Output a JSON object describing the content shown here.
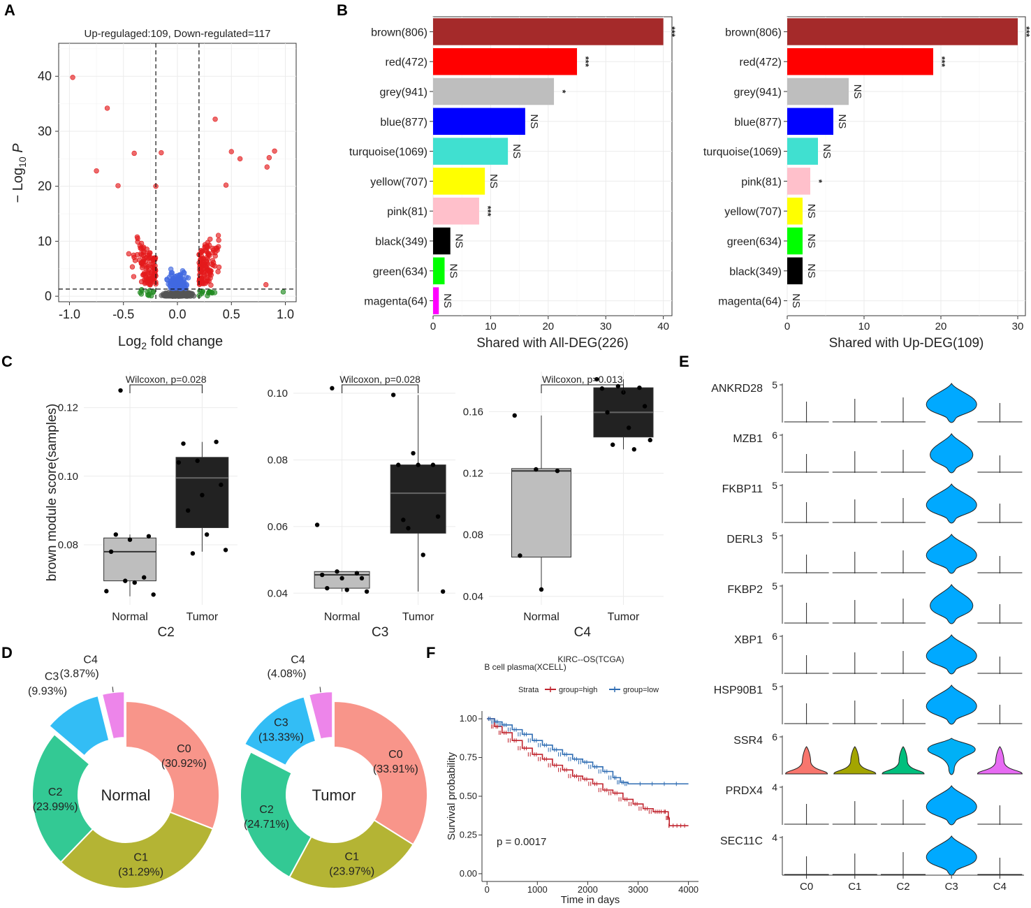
{
  "panels": {
    "A": "A",
    "B": "B",
    "C": "C",
    "D": "D",
    "E": "E",
    "F": "F"
  },
  "chart_data": [
    {
      "panel": "A",
      "type": "scatter",
      "title": "Up-regulaged:109, Down-regulated=117",
      "xlabel": "Log2 fold change",
      "ylabel": "-Log10 P",
      "xlim": [
        -1.1,
        1.1
      ],
      "ylim": [
        -1,
        46
      ],
      "xticks": [
        "-1.0",
        "-0.5",
        "0.0",
        "0.5",
        "1.0"
      ],
      "yticks": [
        "0",
        "10",
        "20",
        "30",
        "40"
      ],
      "colors": {
        "up": "#e41a1c",
        "down": "#e41a1c",
        "ns_fc": "#4169e1",
        "ns_p": "#228b22",
        "ns": "#555555"
      },
      "thresholds": {
        "fc": [
          -0.2,
          0.2
        ],
        "p": 1.3
      },
      "highlight_points": [
        [
          -0.97,
          39.8
        ],
        [
          -0.65,
          34.2
        ],
        [
          -0.4,
          26.0
        ],
        [
          -0.15,
          26.1
        ],
        [
          0.35,
          32.2
        ],
        [
          0.9,
          26.4
        ],
        [
          0.85,
          25.2
        ],
        [
          0.5,
          26.3
        ],
        [
          0.58,
          25.0
        ],
        [
          0.83,
          23.5
        ],
        [
          -0.75,
          22.8
        ],
        [
          -0.2,
          20.0
        ],
        [
          -0.55,
          20.1
        ],
        [
          0.45,
          20.2
        ],
        [
          0.82,
          2.1
        ],
        [
          0.98,
          0.8
        ]
      ]
    },
    {
      "panel": "B-left",
      "type": "bar",
      "orientation": "horizontal",
      "xlabel": "Shared with All-DEG(226)",
      "xlim": [
        0,
        41.5
      ],
      "xticks": [
        "0",
        "10",
        "20",
        "30",
        "40"
      ],
      "categories": [
        "brown(806)",
        "red(472)",
        "grey(941)",
        "blue(877)",
        "turquoise(1069)",
        "yellow(707)",
        "pink(81)",
        "black(349)",
        "green(634)",
        "magenta(64)"
      ],
      "values": [
        40,
        25,
        21,
        16,
        13,
        9,
        8,
        3,
        2,
        1
      ],
      "colors": [
        "#a52a2a",
        "#ff0000",
        "#bebebe",
        "#0000ff",
        "#40e0d0",
        "#ffff00",
        "#ffc0cb",
        "#000000",
        "#00ff00",
        "#ff00ff"
      ],
      "significance": [
        "***",
        "***",
        "*",
        "NS",
        "NS",
        "NS",
        "***",
        "NS",
        "NS",
        "NS"
      ]
    },
    {
      "panel": "B-right",
      "type": "bar",
      "orientation": "horizontal",
      "xlabel": "Shared with Up-DEG(109)",
      "xlim": [
        0,
        31
      ],
      "xticks": [
        "0",
        "10",
        "20",
        "30"
      ],
      "categories": [
        "brown(806)",
        "red(472)",
        "grey(941)",
        "blue(877)",
        "turquoise(1069)",
        "pink(81)",
        "yellow(707)",
        "green(634)",
        "black(349)",
        "magenta(64)"
      ],
      "values": [
        30,
        19,
        8,
        6,
        4,
        3,
        2,
        2,
        2,
        0
      ],
      "colors": [
        "#a52a2a",
        "#ff0000",
        "#bebebe",
        "#0000ff",
        "#40e0d0",
        "#ffc0cb",
        "#ffff00",
        "#00ff00",
        "#000000",
        "#ff00ff"
      ],
      "significance": [
        "***",
        "***",
        "NS",
        "NS",
        "NS",
        "*",
        "NS",
        "NS",
        "NS",
        "NS"
      ]
    },
    {
      "panel": "C",
      "type": "box",
      "ylabel": "brown module score(samples)",
      "groups": [
        "Normal",
        "Tumor"
      ],
      "colors": {
        "Normal": "#bebebe",
        "Tumor": "#222222"
      },
      "plots": [
        {
          "name": "C2",
          "test": "Wilcoxon, p=0.028",
          "ylim": [
            0.0625,
            0.1305
          ],
          "yticks": [
            0.08,
            0.1,
            0.12
          ],
          "ytick_labels": [
            "0.08",
            "0.10",
            "0.12"
          ],
          "normal": {
            "q1": 0.0695,
            "median": 0.078,
            "q3": 0.082,
            "min": 0.065,
            "max": 0.083,
            "points": [
              0.0665,
              0.0695,
              0.0705,
              0.078,
              0.0815,
              0.0825,
              0.083,
              0.069,
              0.0655,
              0.125
            ]
          },
          "tumor": {
            "q1": 0.085,
            "median": 0.0995,
            "q3": 0.1055,
            "min": 0.078,
            "max": 0.11,
            "points": [
              0.104,
              0.1045,
              0.11,
              0.1095,
              0.0945,
              0.0975,
              0.09,
              0.083,
              0.0785,
              0.0775
            ]
          }
        },
        {
          "name": "C3",
          "test": "Wilcoxon, p=0.028",
          "ylim": [
            0.0365,
            0.1065
          ],
          "yticks": [
            0.04,
            0.06,
            0.08,
            0.1
          ],
          "ytick_labels": [
            "0.04",
            "0.06",
            "0.08",
            "0.10"
          ],
          "normal": {
            "q1": 0.0415,
            "median": 0.0455,
            "q3": 0.0465,
            "min": 0.0405,
            "max": 0.0465,
            "points": [
              0.0605,
              0.0465,
              0.046,
              0.0455,
              0.0445,
              0.0445,
              0.0415,
              0.041,
              0.0405,
              0.1015
            ]
          },
          "tumor": {
            "q1": 0.058,
            "median": 0.07,
            "q3": 0.0785,
            "min": 0.0405,
            "max": 0.0995,
            "points": [
              0.0995,
              0.082,
              0.0785,
              0.0785,
              0.0785,
              0.063,
              0.062,
              0.0515,
              0.0405,
              0.0595
            ]
          }
        },
        {
          "name": "C4",
          "test": "Wilcoxon, p=0.013",
          "ylim": [
            0.0345,
            0.186
          ],
          "yticks": [
            0.04,
            0.08,
            0.12,
            0.16
          ],
          "ytick_labels": [
            "0.04",
            "0.08",
            "0.12",
            "0.16"
          ],
          "normal": {
            "q1": 0.0655,
            "median": 0.1215,
            "q3": 0.123,
            "min": 0.0445,
            "max": 0.1575,
            "points": [
              0.1575,
              0.1225,
              0.1215,
              0.0665,
              0.0445
            ]
          },
          "tumor": {
            "q1": 0.1435,
            "median": 0.1595,
            "q3": 0.1755,
            "min": 0.1355,
            "max": 0.181,
            "points": [
              0.181,
              0.1765,
              0.1755,
              0.175,
              0.1725,
              0.1635,
              0.1595,
              0.1495,
              0.1415,
              0.1385,
              0.1355
            ]
          }
        }
      ]
    },
    {
      "panel": "D",
      "type": "pie",
      "style": "donut",
      "charts": [
        {
          "center": "Normal",
          "slices": [
            {
              "name": "C0",
              "pct": 30.92,
              "label": "(30.92%)",
              "color": "#f8958a"
            },
            {
              "name": "C1",
              "pct": 31.29,
              "label": "(31.29%)",
              "color": "#b4b434"
            },
            {
              "name": "C2",
              "pct": 23.99,
              "label": "(23.99%)",
              "color": "#33c994"
            },
            {
              "name": "C3",
              "pct": 9.93,
              "label": "(9.93%)",
              "color": "#33bdf5"
            },
            {
              "name": "C4",
              "pct": 3.87,
              "label": "(3.87%)",
              "color": "#ed85ea"
            }
          ]
        },
        {
          "center": "Tumor",
          "slices": [
            {
              "name": "C0",
              "pct": 33.91,
              "label": "(33.91%)",
              "color": "#f8958a"
            },
            {
              "name": "C1",
              "pct": 23.97,
              "label": "(23.97%)",
              "color": "#b4b434"
            },
            {
              "name": "C2",
              "pct": 24.71,
              "label": "(24.71%)",
              "color": "#33c994"
            },
            {
              "name": "C3",
              "pct": 13.33,
              "label": "(13.33%)",
              "color": "#33bdf5"
            },
            {
              "name": "C4",
              "pct": 4.08,
              "label": "(4.08%)",
              "color": "#ed85ea"
            }
          ]
        }
      ]
    },
    {
      "panel": "E",
      "type": "violin",
      "categories": [
        "C0",
        "C1",
        "C2",
        "C3",
        "C4"
      ],
      "genes": [
        {
          "gene": "ANKRD28",
          "ymax": "5"
        },
        {
          "gene": "MZB1",
          "ymax": "6"
        },
        {
          "gene": "FKBP11",
          "ymax": "5"
        },
        {
          "gene": "DERL3",
          "ymax": "5"
        },
        {
          "gene": "FKBP2",
          "ymax": "5"
        },
        {
          "gene": "XBP1",
          "ymax": "6"
        },
        {
          "gene": "HSP90B1",
          "ymax": "5"
        },
        {
          "gene": "SSR4",
          "ymax": "6"
        },
        {
          "gene": "PRDX4",
          "ymax": "4"
        },
        {
          "gene": "SEC11C",
          "ymax": "4"
        }
      ],
      "violin_color": "#00a9ff",
      "ssr4_colors": [
        "#f8766d",
        "#a3a500",
        "#00bf7d",
        "#00b0f6",
        "#e76bf3"
      ]
    },
    {
      "panel": "F",
      "type": "line",
      "title": "KIRC--OS(TCGA)",
      "subtitle": "B cell plasma(XCELL)",
      "legend_title": "Strata",
      "xlabel": "Time in days",
      "ylabel": "Survival probability",
      "xlim": [
        -100,
        4200
      ],
      "ylim": [
        -0.05,
        1.05
      ],
      "xticks": [
        "0",
        "1000",
        "2000",
        "3000",
        "4000"
      ],
      "yticks": [
        "0.00",
        "0.25",
        "0.50",
        "0.75",
        "1.00"
      ],
      "pvalue": "p = 0.0017",
      "series": [
        {
          "name": "group=high",
          "color": "#c0242e",
          "x": [
            0,
            150,
            300,
            500,
            700,
            900,
            1100,
            1300,
            1500,
            1700,
            1900,
            2100,
            2300,
            2500,
            2700,
            2900,
            3100,
            3300,
            3500,
            3600,
            3620,
            4000
          ],
          "y": [
            1.0,
            0.95,
            0.91,
            0.86,
            0.81,
            0.77,
            0.74,
            0.7,
            0.67,
            0.63,
            0.61,
            0.58,
            0.54,
            0.52,
            0.48,
            0.45,
            0.42,
            0.4,
            0.4,
            0.36,
            0.31,
            0.31
          ]
        },
        {
          "name": "group=low",
          "color": "#2f6db3",
          "x": [
            0,
            150,
            300,
            500,
            700,
            900,
            1100,
            1300,
            1500,
            1700,
            1900,
            2100,
            2300,
            2500,
            2650,
            2800,
            4000
          ],
          "y": [
            1.0,
            0.98,
            0.96,
            0.93,
            0.9,
            0.86,
            0.83,
            0.8,
            0.77,
            0.74,
            0.72,
            0.69,
            0.66,
            0.62,
            0.59,
            0.58,
            0.58
          ]
        }
      ]
    }
  ]
}
